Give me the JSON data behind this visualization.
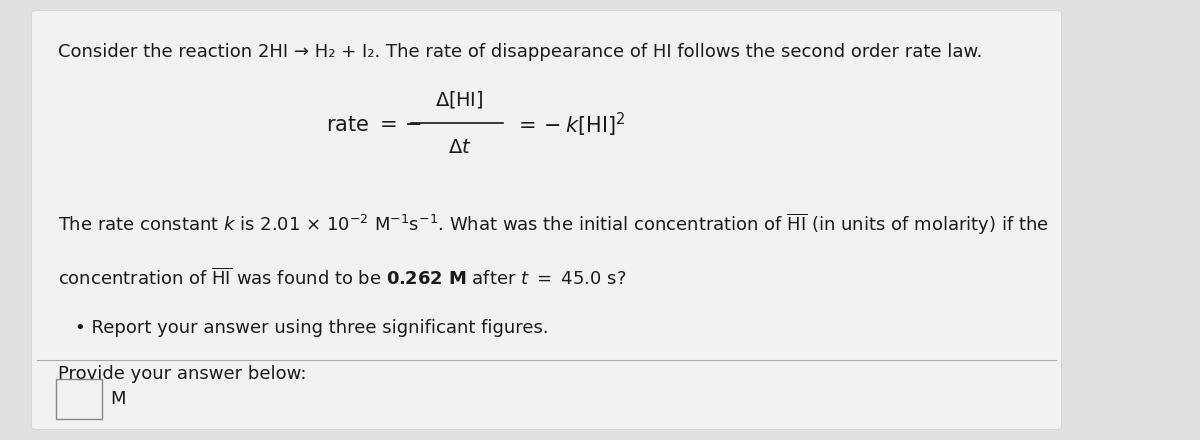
{
  "bg_color": "#e0e0e0",
  "card_color": "#f2f2f2",
  "text_color": "#1a1a1a",
  "title_line": "Consider the reaction 2HI → H₂ + I₂. The rate of disappearance of HI follows the second order rate law.",
  "bullet": "• Report your answer using three significant figures.",
  "provide_text": "Provide your answer below:",
  "unit_label": "M",
  "font_size_title": 13,
  "font_size_body": 13,
  "font_size_math": 14,
  "sep_line_color": "#aaaaaa",
  "box_edge_color": "#888888"
}
